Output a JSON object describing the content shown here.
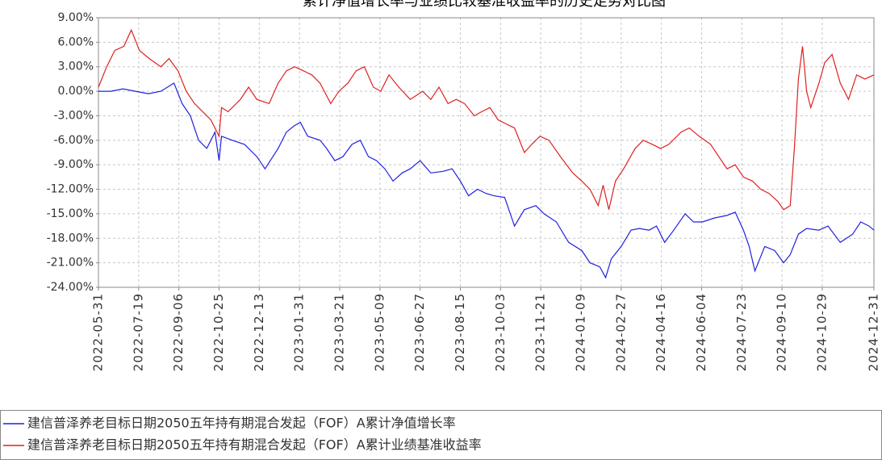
{
  "chart_data": {
    "type": "line",
    "title": "累计净值增长率与业绩比较基准收益率的历史走势对比图",
    "xlim": [
      "2022-05-31",
      "2024-12-31"
    ],
    "xticks": [
      "2022-05-31",
      "2022-07-19",
      "2022-09-06",
      "2022-10-25",
      "2022-12-13",
      "2023-01-31",
      "2023-03-21",
      "2023-05-09",
      "2023-06-27",
      "2023-08-15",
      "2023-10-03",
      "2023-11-21",
      "2024-01-09",
      "2024-02-27",
      "2024-04-16",
      "2024-06-04",
      "2024-07-23",
      "2024-09-10",
      "2024-10-29",
      "2024-12-31"
    ],
    "ylim": [
      -24,
      9
    ],
    "yticks": [
      {
        "value": 9,
        "label": "9.00%"
      },
      {
        "value": 6,
        "label": "6.00%"
      },
      {
        "value": 3,
        "label": "3.00%"
      },
      {
        "value": 0,
        "label": "0.00%"
      },
      {
        "value": -3,
        "label": "-3.00%"
      },
      {
        "value": -6,
        "label": "-6.00%"
      },
      {
        "value": -9,
        "label": "-9.00%"
      },
      {
        "value": -12,
        "label": "-12.00%"
      },
      {
        "value": -15,
        "label": "-15.00%"
      },
      {
        "value": -18,
        "label": "-18.00%"
      },
      {
        "value": -21,
        "label": "-21.00%"
      },
      {
        "value": -24,
        "label": "-24.00%"
      }
    ],
    "grid": true,
    "legend": "bottom-left",
    "series": [
      {
        "name": "建信普泽养老目标日期2050五年持有期混合发起（FOF）A累计净值增长率",
        "color": "#2020e0",
        "x": [
          "2022-05-31",
          "2022-06-15",
          "2022-06-30",
          "2022-07-15",
          "2022-07-31",
          "2022-08-15",
          "2022-08-31",
          "2022-09-10",
          "2022-09-20",
          "2022-09-30",
          "2022-10-10",
          "2022-10-20",
          "2022-10-25",
          "2022-10-28",
          "2022-11-10",
          "2022-11-25",
          "2022-12-10",
          "2022-12-20",
          "2023-01-05",
          "2023-01-15",
          "2023-01-25",
          "2023-02-01",
          "2023-02-10",
          "2023-02-25",
          "2023-03-05",
          "2023-03-15",
          "2023-03-25",
          "2023-04-05",
          "2023-04-15",
          "2023-04-25",
          "2023-05-05",
          "2023-05-15",
          "2023-05-25",
          "2023-06-05",
          "2023-06-15",
          "2023-06-27",
          "2023-07-10",
          "2023-07-25",
          "2023-08-05",
          "2023-08-15",
          "2023-08-25",
          "2023-09-05",
          "2023-09-15",
          "2023-09-25",
          "2023-10-08",
          "2023-10-20",
          "2023-11-01",
          "2023-11-15",
          "2023-11-25",
          "2023-12-10",
          "2023-12-25",
          "2024-01-10",
          "2024-01-20",
          "2024-02-01",
          "2024-02-08",
          "2024-02-15",
          "2024-02-27",
          "2024-03-10",
          "2024-03-20",
          "2024-04-01",
          "2024-04-10",
          "2024-04-20",
          "2024-05-01",
          "2024-05-15",
          "2024-05-25",
          "2024-06-05",
          "2024-06-20",
          "2024-07-05",
          "2024-07-15",
          "2024-07-25",
          "2024-08-01",
          "2024-08-08",
          "2024-08-20",
          "2024-09-01",
          "2024-09-12",
          "2024-09-20",
          "2024-09-30",
          "2024-10-10",
          "2024-10-25",
          "2024-11-05",
          "2024-11-20",
          "2024-12-05",
          "2024-12-15",
          "2024-12-25",
          "2024-12-31"
        ],
        "values": [
          0,
          0,
          0.3,
          0,
          -0.3,
          0,
          1.0,
          -1.5,
          -3,
          -6,
          -7,
          -5,
          -8.5,
          -5.5,
          -6,
          -6.5,
          -8,
          -9.5,
          -7,
          -5,
          -4.2,
          -3.8,
          -5.5,
          -6,
          -7,
          -8.5,
          -8,
          -6.5,
          -6,
          -8,
          -8.5,
          -9.5,
          -11,
          -10,
          -9.5,
          -8.5,
          -10,
          -9.8,
          -9.5,
          -11,
          -12.8,
          -12,
          -12.5,
          -12.8,
          -13,
          -16.5,
          -14.5,
          -14,
          -15,
          -16,
          -18.5,
          -19.5,
          -21,
          -21.5,
          -22.8,
          -20.5,
          -19,
          -17,
          -16.8,
          -17,
          -16.5,
          -18.5,
          -17,
          -15,
          -16,
          -16,
          -15.5,
          -15.2,
          -14.8,
          -17,
          -19,
          -22,
          -19,
          -19.5,
          -21,
          -20,
          -17.5,
          -16.8,
          -17,
          -16.5,
          -18.5,
          -17.5,
          -16,
          -16.5,
          -17
        ]
      },
      {
        "name": "建信普泽养老目标日期2050五年持有期混合发起（FOF）A累计业绩基准收益率",
        "color": "#e02020",
        "x": [
          "2022-05-31",
          "2022-06-10",
          "2022-06-20",
          "2022-07-01",
          "2022-07-10",
          "2022-07-20",
          "2022-08-01",
          "2022-08-15",
          "2022-08-25",
          "2022-09-05",
          "2022-09-15",
          "2022-09-25",
          "2022-10-05",
          "2022-10-15",
          "2022-10-25",
          "2022-10-28",
          "2022-11-05",
          "2022-11-20",
          "2022-11-30",
          "2022-12-10",
          "2022-12-25",
          "2023-01-05",
          "2023-01-15",
          "2023-01-25",
          "2023-02-05",
          "2023-02-15",
          "2023-02-25",
          "2023-03-10",
          "2023-03-20",
          "2023-03-31",
          "2023-04-10",
          "2023-04-20",
          "2023-05-01",
          "2023-05-10",
          "2023-05-20",
          "2023-06-01",
          "2023-06-15",
          "2023-06-30",
          "2023-07-10",
          "2023-07-20",
          "2023-07-31",
          "2023-08-10",
          "2023-08-20",
          "2023-09-01",
          "2023-09-10",
          "2023-09-20",
          "2023-09-30",
          "2023-10-10",
          "2023-10-20",
          "2023-11-01",
          "2023-11-10",
          "2023-11-20",
          "2023-12-01",
          "2023-12-15",
          "2023-12-30",
          "2024-01-10",
          "2024-01-20",
          "2024-01-30",
          "2024-02-05",
          "2024-02-12",
          "2024-02-20",
          "2024-03-01",
          "2024-03-15",
          "2024-03-25",
          "2024-04-05",
          "2024-04-15",
          "2024-04-25",
          "2024-05-10",
          "2024-05-20",
          "2024-06-01",
          "2024-06-15",
          "2024-06-25",
          "2024-07-05",
          "2024-07-15",
          "2024-07-25",
          "2024-08-05",
          "2024-08-15",
          "2024-08-25",
          "2024-09-05",
          "2024-09-12",
          "2024-09-20",
          "2024-09-25",
          "2024-09-30",
          "2024-10-05",
          "2024-10-10",
          "2024-10-15",
          "2024-10-25",
          "2024-11-01",
          "2024-11-10",
          "2024-11-20",
          "2024-11-30",
          "2024-12-10",
          "2024-12-20",
          "2024-12-31"
        ],
        "values": [
          0.5,
          3,
          5,
          5.5,
          7.5,
          5,
          4,
          3,
          4,
          2.5,
          0,
          -1.5,
          -2.5,
          -3.5,
          -5.5,
          -2,
          -2.5,
          -1,
          0.5,
          -1,
          -1.5,
          1,
          2.5,
          3,
          2.5,
          2,
          1,
          -1.5,
          0,
          1,
          2.5,
          3,
          0.5,
          0,
          2,
          0.5,
          -1,
          0,
          -1,
          0.5,
          -1.5,
          -1,
          -1.5,
          -3,
          -2.5,
          -2,
          -3.5,
          -4,
          -4.5,
          -7.5,
          -6.5,
          -5.5,
          -6,
          -8,
          -10,
          -11,
          -12,
          -14,
          -11.5,
          -14.5,
          -11,
          -9.5,
          -7,
          -6,
          -6.5,
          -7,
          -6.5,
          -5,
          -4.5,
          -5.5,
          -6.5,
          -8,
          -9.5,
          -9,
          -10.5,
          -11,
          -12,
          -12.5,
          -13.5,
          -14.5,
          -14,
          -7,
          1.5,
          5.5,
          0,
          -2,
          1,
          3.5,
          4.5,
          1,
          -1,
          2,
          1.5,
          2
        ]
      }
    ]
  }
}
